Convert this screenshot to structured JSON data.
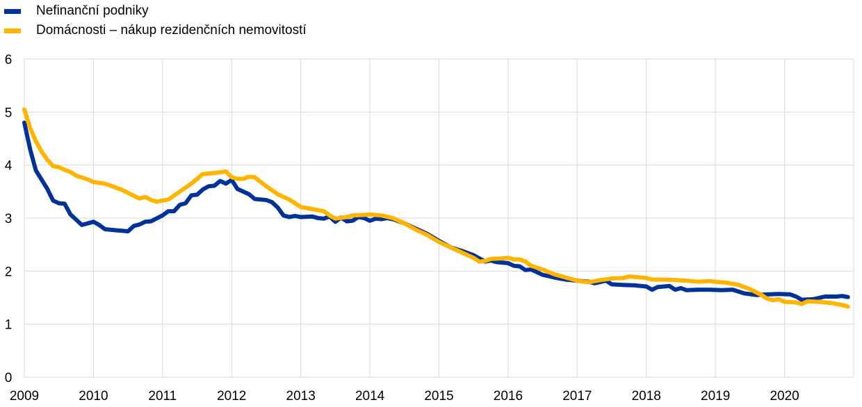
{
  "chart_data": {
    "type": "line",
    "title": "",
    "xlabel": "",
    "ylabel": "",
    "ylim": [
      0,
      6
    ],
    "xlim": [
      "2009-01",
      "2021-01"
    ],
    "yticks": [
      "0",
      "1",
      "2",
      "3",
      "4",
      "5",
      "6"
    ],
    "xticks": [
      "2009",
      "2010",
      "2011",
      "2012",
      "2013",
      "2014",
      "2015",
      "2016",
      "2017",
      "2018",
      "2019",
      "2020"
    ],
    "grid": true,
    "legend": "top-left",
    "series": [
      {
        "name": "Nefinanční podniky",
        "color": "#003299",
        "points": [
          [
            "2009-01",
            4.8
          ],
          [
            "2009-02",
            4.3
          ],
          [
            "2009-03",
            3.9
          ],
          [
            "2009-05",
            3.55
          ],
          [
            "2009-06",
            3.33
          ],
          [
            "2009-07",
            3.28
          ],
          [
            "2009-08",
            3.27
          ],
          [
            "2009-09",
            3.07
          ],
          [
            "2009-11",
            2.87
          ],
          [
            "2010-01",
            2.93
          ],
          [
            "2010-02",
            2.87
          ],
          [
            "2010-03",
            2.79
          ],
          [
            "2010-05",
            2.77
          ],
          [
            "2010-06",
            2.76
          ],
          [
            "2010-07",
            2.75
          ],
          [
            "2010-08",
            2.85
          ],
          [
            "2010-09",
            2.88
          ],
          [
            "2010-10",
            2.93
          ],
          [
            "2010-11",
            2.94
          ],
          [
            "2011-01",
            3.05
          ],
          [
            "2011-02",
            3.13
          ],
          [
            "2011-03",
            3.13
          ],
          [
            "2011-04",
            3.25
          ],
          [
            "2011-05",
            3.28
          ],
          [
            "2011-06",
            3.43
          ],
          [
            "2011-07",
            3.44
          ],
          [
            "2011-08",
            3.54
          ],
          [
            "2011-09",
            3.6
          ],
          [
            "2011-10",
            3.61
          ],
          [
            "2011-11",
            3.7
          ],
          [
            "2011-12",
            3.65
          ],
          [
            "2012-01",
            3.72
          ],
          [
            "2012-02",
            3.55
          ],
          [
            "2012-04",
            3.45
          ],
          [
            "2012-05",
            3.36
          ],
          [
            "2012-07",
            3.34
          ],
          [
            "2012-08",
            3.3
          ],
          [
            "2012-09",
            3.2
          ],
          [
            "2012-10",
            3.05
          ],
          [
            "2012-11",
            3.02
          ],
          [
            "2012-12",
            3.04
          ],
          [
            "2013-01",
            3.02
          ],
          [
            "2013-03",
            3.03
          ],
          [
            "2013-04",
            3.0
          ],
          [
            "2013-05",
            2.99
          ],
          [
            "2013-06",
            3.03
          ],
          [
            "2013-07",
            2.93
          ],
          [
            "2013-08",
            3.01
          ],
          [
            "2013-09",
            2.94
          ],
          [
            "2013-10",
            2.95
          ],
          [
            "2013-11",
            3.02
          ],
          [
            "2013-12",
            3.0
          ],
          [
            "2014-01",
            2.95
          ],
          [
            "2014-02",
            2.99
          ],
          [
            "2014-03",
            2.98
          ],
          [
            "2014-04",
            3.0
          ],
          [
            "2014-05",
            2.98
          ],
          [
            "2014-07",
            2.9
          ],
          [
            "2014-09",
            2.8
          ],
          [
            "2014-11",
            2.7
          ],
          [
            "2015-01",
            2.57
          ],
          [
            "2015-03",
            2.45
          ],
          [
            "2015-05",
            2.38
          ],
          [
            "2015-07",
            2.3
          ],
          [
            "2015-08",
            2.24
          ],
          [
            "2015-09",
            2.18
          ],
          [
            "2015-10",
            2.2
          ],
          [
            "2015-11",
            2.17
          ],
          [
            "2016-01",
            2.15
          ],
          [
            "2016-02",
            2.1
          ],
          [
            "2016-03",
            2.09
          ],
          [
            "2016-04",
            2.02
          ],
          [
            "2016-05",
            2.03
          ],
          [
            "2016-07",
            1.93
          ],
          [
            "2016-09",
            1.88
          ],
          [
            "2016-11",
            1.84
          ],
          [
            "2017-01",
            1.82
          ],
          [
            "2017-03",
            1.8
          ],
          [
            "2017-04",
            1.77
          ],
          [
            "2017-06",
            1.82
          ],
          [
            "2017-07",
            1.75
          ],
          [
            "2017-09",
            1.74
          ],
          [
            "2017-11",
            1.73
          ],
          [
            "2018-01",
            1.71
          ],
          [
            "2018-02",
            1.65
          ],
          [
            "2018-03",
            1.7
          ],
          [
            "2018-05",
            1.72
          ],
          [
            "2018-06",
            1.65
          ],
          [
            "2018-07",
            1.68
          ],
          [
            "2018-08",
            1.64
          ],
          [
            "2018-10",
            1.65
          ],
          [
            "2018-12",
            1.65
          ],
          [
            "2019-02",
            1.64
          ],
          [
            "2019-04",
            1.65
          ],
          [
            "2019-06",
            1.58
          ],
          [
            "2019-08",
            1.55
          ],
          [
            "2019-10",
            1.56
          ],
          [
            "2019-12",
            1.57
          ],
          [
            "2020-02",
            1.56
          ],
          [
            "2020-03",
            1.52
          ],
          [
            "2020-04",
            1.46
          ],
          [
            "2020-06",
            1.47
          ],
          [
            "2020-08",
            1.52
          ],
          [
            "2020-10",
            1.52
          ],
          [
            "2020-11",
            1.53
          ],
          [
            "2020-12",
            1.51
          ]
        ]
      },
      {
        "name": "Domácnosti – nákup rezidenčních nemovitostí",
        "color": "#FFB400",
        "points": [
          [
            "2009-01",
            5.05
          ],
          [
            "2009-02",
            4.7
          ],
          [
            "2009-03",
            4.45
          ],
          [
            "2009-04",
            4.25
          ],
          [
            "2009-05",
            4.1
          ],
          [
            "2009-06",
            3.98
          ],
          [
            "2009-07",
            3.96
          ],
          [
            "2009-08",
            3.91
          ],
          [
            "2009-09",
            3.87
          ],
          [
            "2009-10",
            3.8
          ],
          [
            "2009-12",
            3.73
          ],
          [
            "2010-01",
            3.68
          ],
          [
            "2010-03",
            3.65
          ],
          [
            "2010-05",
            3.57
          ],
          [
            "2010-06",
            3.53
          ],
          [
            "2010-08",
            3.42
          ],
          [
            "2010-09",
            3.37
          ],
          [
            "2010-10",
            3.4
          ],
          [
            "2010-11",
            3.34
          ],
          [
            "2010-12",
            3.31
          ],
          [
            "2011-02",
            3.35
          ],
          [
            "2011-04",
            3.5
          ],
          [
            "2011-06",
            3.65
          ],
          [
            "2011-08",
            3.83
          ],
          [
            "2011-10",
            3.85
          ],
          [
            "2011-12",
            3.88
          ],
          [
            "2012-01",
            3.77
          ],
          [
            "2012-02",
            3.74
          ],
          [
            "2012-03",
            3.74
          ],
          [
            "2012-04",
            3.78
          ],
          [
            "2012-05",
            3.77
          ],
          [
            "2012-07",
            3.6
          ],
          [
            "2012-09",
            3.45
          ],
          [
            "2012-11",
            3.35
          ],
          [
            "2013-01",
            3.21
          ],
          [
            "2013-03",
            3.17
          ],
          [
            "2013-05",
            3.13
          ],
          [
            "2013-06",
            3.05
          ],
          [
            "2013-07",
            2.99
          ],
          [
            "2013-09",
            3.02
          ],
          [
            "2013-10",
            3.05
          ],
          [
            "2013-12",
            3.06
          ],
          [
            "2014-01",
            3.07
          ],
          [
            "2014-03",
            3.05
          ],
          [
            "2014-05",
            3.0
          ],
          [
            "2014-07",
            2.9
          ],
          [
            "2014-09",
            2.78
          ],
          [
            "2014-11",
            2.68
          ],
          [
            "2015-01",
            2.55
          ],
          [
            "2015-03",
            2.45
          ],
          [
            "2015-05",
            2.35
          ],
          [
            "2015-07",
            2.25
          ],
          [
            "2015-08",
            2.18
          ],
          [
            "2015-09",
            2.19
          ],
          [
            "2015-10",
            2.23
          ],
          [
            "2015-12",
            2.24
          ],
          [
            "2016-01",
            2.25
          ],
          [
            "2016-02",
            2.22
          ],
          [
            "2016-03",
            2.22
          ],
          [
            "2016-04",
            2.18
          ],
          [
            "2016-05",
            2.1
          ],
          [
            "2016-07",
            2.03
          ],
          [
            "2016-09",
            1.94
          ],
          [
            "2016-11",
            1.88
          ],
          [
            "2017-01",
            1.82
          ],
          [
            "2017-03",
            1.79
          ],
          [
            "2017-05",
            1.83
          ],
          [
            "2017-07",
            1.86
          ],
          [
            "2017-09",
            1.87
          ],
          [
            "2017-10",
            1.9
          ],
          [
            "2017-12",
            1.88
          ],
          [
            "2018-01",
            1.87
          ],
          [
            "2018-02",
            1.84
          ],
          [
            "2018-04",
            1.84
          ],
          [
            "2018-06",
            1.83
          ],
          [
            "2018-08",
            1.82
          ],
          [
            "2018-10",
            1.8
          ],
          [
            "2018-12",
            1.81
          ],
          [
            "2019-01",
            1.8
          ],
          [
            "2019-03",
            1.78
          ],
          [
            "2019-05",
            1.74
          ],
          [
            "2019-07",
            1.66
          ],
          [
            "2019-09",
            1.55
          ],
          [
            "2019-10",
            1.48
          ],
          [
            "2019-11",
            1.45
          ],
          [
            "2019-12",
            1.47
          ],
          [
            "2020-01",
            1.42
          ],
          [
            "2020-03",
            1.41
          ],
          [
            "2020-04",
            1.38
          ],
          [
            "2020-05",
            1.43
          ],
          [
            "2020-07",
            1.42
          ],
          [
            "2020-09",
            1.4
          ],
          [
            "2020-11",
            1.36
          ],
          [
            "2020-12",
            1.33
          ]
        ]
      }
    ]
  }
}
